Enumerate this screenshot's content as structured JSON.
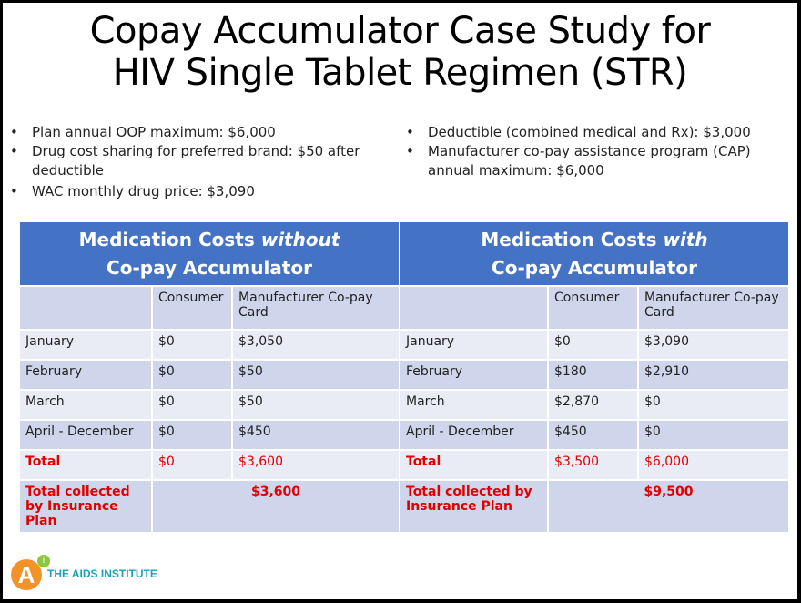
{
  "title": {
    "line1": "Copay Accumulator Case Study for",
    "line2": "HIV Single Tablet Regimen (STR)"
  },
  "bullets_left": [
    "Plan annual OOP maximum: $6,000",
    "Drug cost sharing for preferred  brand: $50 after deductible",
    "WAC monthly drug price: $3,090"
  ],
  "bullets_right": [
    "Deductible (combined medical and Rx): $3,000",
    "Manufacturer co-pay assistance program (CAP) annual maximum: $6,000"
  ],
  "table": {
    "left_header": {
      "pre": "Medication Costs ",
      "em": "without",
      "post": "Co-pay Accumulator"
    },
    "right_header": {
      "pre": "Medication Costs ",
      "em": "with",
      "post": "Co-pay Accumulator"
    },
    "columns": [
      "",
      "Consumer",
      "Manufacturer Co-pay Card"
    ],
    "rows": [
      {
        "left": [
          "January",
          "$0",
          "$3,050"
        ],
        "right": [
          "January",
          "$0",
          "$3,090"
        ]
      },
      {
        "left": [
          "February",
          "$0",
          "$50"
        ],
        "right": [
          "February",
          "$180",
          "$2,910"
        ]
      },
      {
        "left": [
          "March",
          "$0",
          "$50"
        ],
        "right": [
          "March",
          "$2,870",
          "$0"
        ]
      },
      {
        "left": [
          "April - December",
          "$0",
          "$450"
        ],
        "right": [
          "April - December",
          "$450",
          "$0"
        ]
      },
      {
        "left": [
          "Total",
          "$0",
          "$3,600"
        ],
        "right": [
          "Total",
          "$3,500",
          "$6,000"
        ]
      }
    ],
    "collected_label": "Total collected by Insurance Plan",
    "collected_left": "$3,600",
    "collected_right": "$9,500"
  },
  "logo": {
    "letter": "A",
    "sup": "i",
    "text": "THE AIDS INSTITUTE"
  },
  "colors": {
    "header": "#4472c4",
    "row_dark": "#cfd5ea",
    "row_light": "#e9ebf5",
    "total": "#e00000",
    "logo_orange": "#f4922a",
    "logo_teal": "#1aa3b8"
  }
}
